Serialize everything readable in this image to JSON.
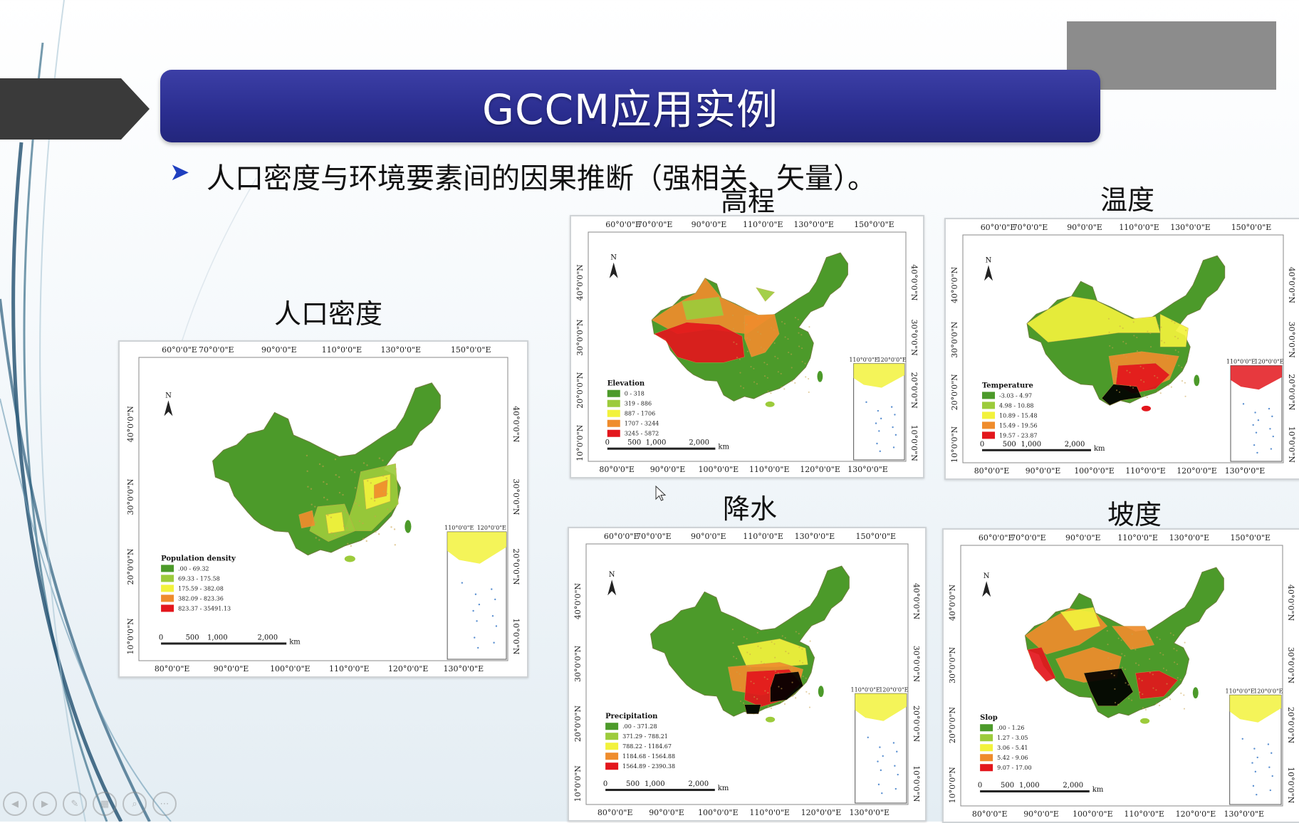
{
  "slide": {
    "title": "GCCM应用实例",
    "bullet_glyph": "➤",
    "bullet_text": "人口密度与环境要素间的因果推断（强相关、矢量）。"
  },
  "colors": {
    "title_bar": "#2a2d8f",
    "class1": "#4c9a2a",
    "class2": "#9ccb3b",
    "class3": "#f2f23c",
    "class4": "#ef8c2c",
    "class5": "#e3161c",
    "county_line": "#caa24a"
  },
  "maps": {
    "population": {
      "label": "人口密度",
      "legend_title": "Population density",
      "legend": [
        ".00 - 69.32",
        "69.33 - 175.58",
        "175.59 - 382.08",
        "382.09 - 823.36",
        "823.37 - 35491.13"
      ],
      "dominant_icon": "china-map-green"
    },
    "elevation": {
      "label": "高程",
      "legend_title": "Elevation",
      "legend": [
        "0 - 318",
        "319 - 886",
        "887 - 1706",
        "1707 - 3244",
        "3245 - 5872"
      ]
    },
    "temperature": {
      "label": "温度",
      "legend_title": "Temperature",
      "legend": [
        "-3.03 - 4.97",
        "4.98 - 10.88",
        "10.89 - 15.48",
        "15.49 - 19.56",
        "19.57 - 23.87"
      ]
    },
    "precipitation": {
      "label": "降水",
      "legend_title": "Precipitation",
      "legend": [
        ".00 - 371.28",
        "371.29 - 788.21",
        "788.22 - 1184.67",
        "1184.68 - 1564.88",
        "1564.89 - 2390.38"
      ]
    },
    "slope": {
      "label": "坡度",
      "legend_title": "Slop",
      "legend": [
        ".00 - 1.26",
        "1.27 - 3.05",
        "3.06 - 5.41",
        "5.42 - 9.06",
        "9.07 - 17.00"
      ]
    }
  },
  "axes": {
    "lon_top": [
      "60°0'0\"E",
      "70°0'0\"E",
      "90°0'0\"E",
      "110°0'0\"E",
      "130°0'0\"E",
      "150°0'0\"E"
    ],
    "lon_bottom": [
      "80°0'0\"E",
      "90°0'0\"E",
      "100°0'0\"E",
      "110°0'0\"E",
      "120°0'0\"E",
      "130°0'0\"E"
    ],
    "lat": [
      "40°0'0\"N",
      "30°0'0\"N",
      "20°0'0\"N",
      "10°0'0\"N"
    ],
    "north": "N",
    "scale": [
      "0",
      "500",
      "1,000",
      "2,000"
    ],
    "scale_unit": "km",
    "inset_lon": [
      "110°0'0\"E",
      "120°0'0\"E"
    ]
  },
  "nav": [
    "◀",
    "▶",
    "✎",
    "▦",
    "⌕",
    "⋯"
  ]
}
